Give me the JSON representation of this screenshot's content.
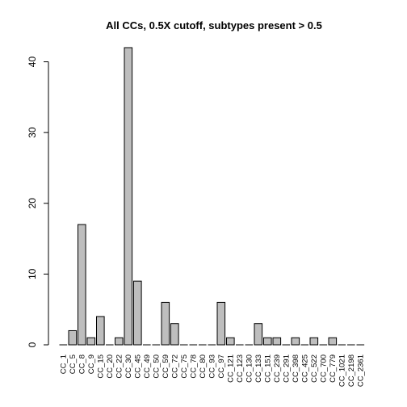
{
  "chart_data": {
    "type": "bar",
    "title": "All CCs, 0.5X cutoff, subtypes present > 0.5",
    "xlabel": "",
    "ylabel": "",
    "categories": [
      "CC_1",
      "CC_5",
      "CC_8",
      "CC_9",
      "CC_15",
      "CC_20",
      "CC_22",
      "CC_30",
      "CC_45",
      "CC_49",
      "CC_50",
      "CC_59",
      "CC_72",
      "CC_75",
      "CC_78",
      "CC_80",
      "CC_93",
      "CC_97",
      "CC_121",
      "CC_123",
      "CC_130",
      "CC_133",
      "CC_151",
      "CC_239",
      "CC_291",
      "CC_398",
      "CC_425",
      "CC_522",
      "CC_700",
      "CC_779",
      "CC_1021",
      "CC_2198",
      "CC_2361"
    ],
    "values": [
      0,
      2,
      17,
      1,
      4,
      0,
      1,
      42,
      9,
      0,
      0,
      6,
      3,
      0,
      0,
      0,
      0,
      6,
      1,
      0,
      0,
      3,
      1,
      1,
      0,
      1,
      0,
      1,
      0,
      1,
      0,
      0,
      0
    ],
    "ylim": [
      0,
      42
    ],
    "yticks": [
      0,
      10,
      20,
      30,
      40
    ],
    "grid": false,
    "bar_color": "#bebebe",
    "outline_color": "#000000"
  }
}
